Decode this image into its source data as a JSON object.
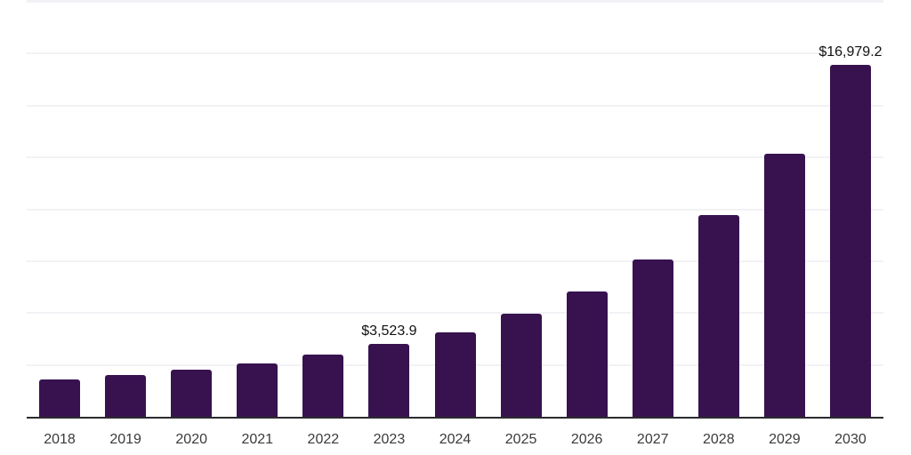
{
  "chart_data": {
    "type": "bar",
    "title": "",
    "xlabel": "",
    "ylabel": "",
    "categories": [
      "2018",
      "2019",
      "2020",
      "2021",
      "2022",
      "2023",
      "2024",
      "2025",
      "2026",
      "2027",
      "2028",
      "2029",
      "2030"
    ],
    "values": [
      1800,
      2010,
      2270,
      2570,
      3000,
      3523.9,
      4070,
      4970,
      6040,
      7580,
      9720,
      12680,
      16979.2
    ],
    "value_labels": {
      "2023": "$3,523.9",
      "2030": "$16,979.2"
    },
    "ylim": [
      0,
      20000
    ],
    "gridline_interval": 2500,
    "grid": true,
    "legend": false,
    "y_axis_tick_labels_visible": false
  },
  "colors": {
    "bar": "#37124F",
    "axis_line": "#2b2b2e",
    "gridline": "#f2f2f5",
    "tick_label": "#3a3a3a",
    "data_label": "#111111",
    "background": "#ffffff"
  }
}
